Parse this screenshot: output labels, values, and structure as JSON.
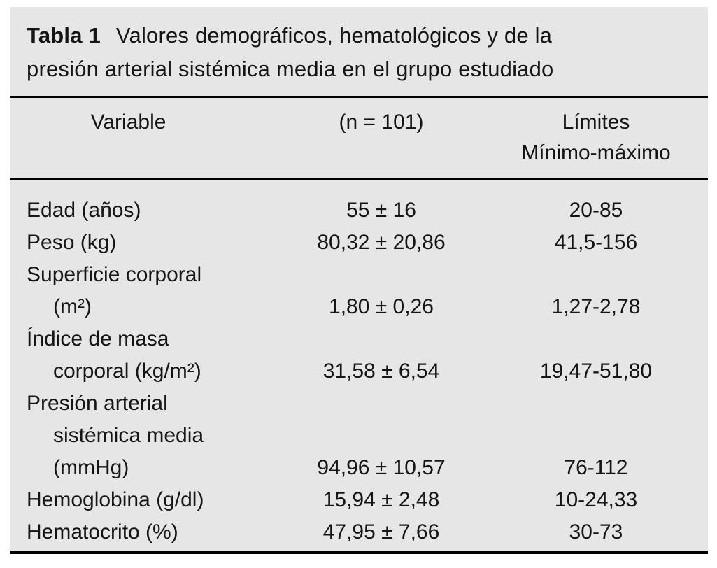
{
  "page": {
    "background_color": "#ffffff",
    "panel_color": "#e6e6e6",
    "rule_color": "#000000",
    "text_color": "#151515"
  },
  "caption": {
    "label": "Tabla 1",
    "line1": "Valores demográficos, hematológicos y de la",
    "line2": "presión arterial sistémica media en el grupo estudiado"
  },
  "table": {
    "header": {
      "col1": "Variable",
      "col2": "(n = 101)",
      "col3_line1": "Límites",
      "col3_line2": "Mínimo-máximo"
    },
    "rows": [
      {
        "label": "Edad (años)",
        "indent": false,
        "value": "55 ± 16",
        "range": "20-85"
      },
      {
        "label": "Peso (kg)",
        "indent": false,
        "value": "80,32 ± 20,86",
        "range": "41,5-156"
      },
      {
        "label": "Superficie corporal",
        "indent": false,
        "value": "",
        "range": ""
      },
      {
        "label": "(m²)",
        "indent": true,
        "value": "1,80 ± 0,26",
        "range": "1,27-2,78"
      },
      {
        "label": "Índice de masa",
        "indent": false,
        "value": "",
        "range": ""
      },
      {
        "label": "corporal (kg/m²)",
        "indent": true,
        "value": "31,58 ± 6,54",
        "range": "19,47-51,80"
      },
      {
        "label": "Presión arterial",
        "indent": false,
        "value": "",
        "range": ""
      },
      {
        "label": "sistémica media",
        "indent": true,
        "value": "",
        "range": ""
      },
      {
        "label": "(mmHg)",
        "indent": true,
        "value": "94,96 ± 10,57",
        "range": "76-112"
      },
      {
        "label": "Hemoglobina (g/dl)",
        "indent": false,
        "value": "15,94 ± 2,48",
        "range": "10-24,33"
      },
      {
        "label": "Hematocrito (%)",
        "indent": false,
        "value": "47,95 ± 7,66",
        "range": "30-73"
      }
    ]
  }
}
